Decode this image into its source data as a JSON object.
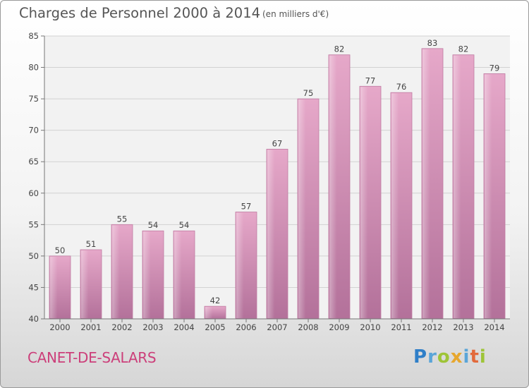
{
  "header": {
    "title": "Charges de Personnel 2000 à 2014",
    "unit": "(en milliers d'€)"
  },
  "commune": "CANET-DE-SALARS",
  "logo": {
    "text": "Proxiti",
    "letters": [
      {
        "ch": "P",
        "color": "#2f7fc8"
      },
      {
        "ch": "r",
        "color": "#5aa5d8"
      },
      {
        "ch": "o",
        "color": "#9ec437"
      },
      {
        "ch": "x",
        "color": "#e7a72e"
      },
      {
        "ch": "i",
        "color": "#5aa5d8"
      },
      {
        "ch": "t",
        "color": "#e26a3c"
      },
      {
        "ch": "i",
        "color": "#9ec437"
      }
    ]
  },
  "chart_data": {
    "type": "bar",
    "title": "Charges de Personnel 2000 à 2014",
    "subtitle": "(en milliers d'€)",
    "categories": [
      "2000",
      "2001",
      "2002",
      "2003",
      "2004",
      "2005",
      "2006",
      "2007",
      "2008",
      "2009",
      "2010",
      "2011",
      "2012",
      "2013",
      "2014"
    ],
    "values": [
      50,
      51,
      55,
      54,
      54,
      42,
      57,
      67,
      75,
      82,
      77,
      76,
      83,
      82,
      79
    ],
    "ylim": [
      40,
      85
    ],
    "yticks": [
      40,
      45,
      50,
      55,
      60,
      65,
      70,
      75,
      80,
      85
    ],
    "grid": true,
    "bar_color": "#d88fb6",
    "bar_color_dark": "#b86e96"
  }
}
